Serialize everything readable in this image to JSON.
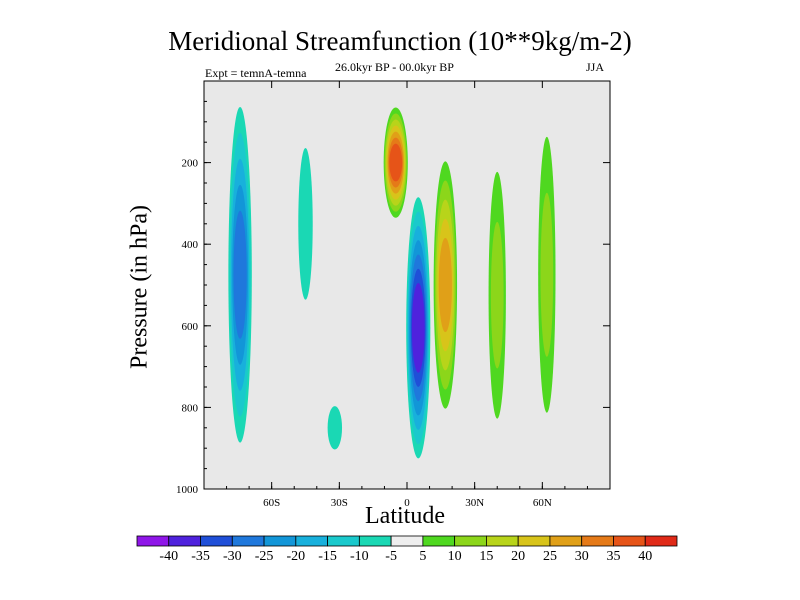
{
  "chart_data": {
    "type": "heatmap",
    "title": "Meridional Streamfunction (10**9kg/m-2)",
    "subtitle": "26.0kyr BP - 00.0kyr BP",
    "left_label": "Expt = temnA-temna",
    "right_label": "JJA",
    "xlabel": "Latitude",
    "ylabel": "Pressure (in hPa)",
    "xlim": [
      -90,
      90
    ],
    "ylim": [
      1000,
      0
    ],
    "x_ticks": [
      {
        "value": -60,
        "label": "60S"
      },
      {
        "value": -30,
        "label": "30S"
      },
      {
        "value": 0,
        "label": "0"
      },
      {
        "value": 30,
        "label": "30N"
      },
      {
        "value": 60,
        "label": "60N"
      }
    ],
    "y_ticks": [
      {
        "value": 200,
        "label": "200"
      },
      {
        "value": 400,
        "label": "400"
      },
      {
        "value": 600,
        "label": "600"
      },
      {
        "value": 800,
        "label": "800"
      },
      {
        "value": 1000,
        "label": "1000"
      }
    ],
    "background_color": "#e8e8e8",
    "colorbar": {
      "levels": [
        "-40",
        "-35",
        "-30",
        "-25",
        "-20",
        "-15",
        "-10",
        "-5",
        "5",
        "10",
        "15",
        "20",
        "25",
        "30",
        "35",
        "40"
      ],
      "colors": [
        "#8f16e8",
        "#4f22dd",
        "#1f4fd8",
        "#1f78dc",
        "#1296d8",
        "#18b0dc",
        "#1ac9cc",
        "#1ad8b4",
        "#eeeeee",
        "#4fd820",
        "#8cd61a",
        "#b8d41a",
        "#d8c41a",
        "#e0a018",
        "#e57a18",
        "#e65418",
        "#e02a18"
      ]
    },
    "features": [
      {
        "name": "sh-high-lat-negative",
        "lat": -74,
        "p_top": 0,
        "p_bottom": 950,
        "peak": -25
      },
      {
        "name": "sh-midlat-negative",
        "lat": -45,
        "p_top": 0,
        "p_bottom": 700,
        "peak": -5
      },
      {
        "name": "sh-subtropical-negative",
        "lat": -32,
        "p_top": 750,
        "p_bottom": 950,
        "peak": -5
      },
      {
        "name": "upper-tropical-positive",
        "lat": -5,
        "p_top": 50,
        "p_bottom": 350,
        "peak": 35
      },
      {
        "name": "tropical-negative-cell",
        "lat": 5,
        "p_top": 250,
        "p_bottom": 960,
        "peak": -35
      },
      {
        "name": "nh-tropical-positive",
        "lat": 17,
        "p_top": 150,
        "p_bottom": 850,
        "peak": 25
      },
      {
        "name": "nh-subtropical-positive",
        "lat": 40,
        "p_top": 100,
        "p_bottom": 950,
        "peak": 10
      },
      {
        "name": "nh-midlat-positive",
        "lat": 62,
        "p_top": 0,
        "p_bottom": 950,
        "peak": 10
      }
    ]
  }
}
